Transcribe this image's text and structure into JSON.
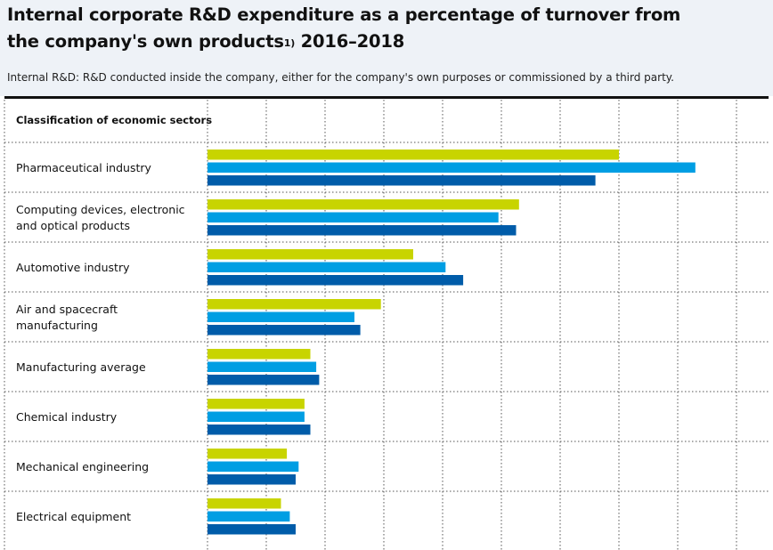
{
  "title_line1": "Internal corporate R&D expenditure as a percentage of turnover from",
  "title_line2": "the company's own products",
  "title_footnote": "1)",
  "title_years": "2016–2018",
  "subtitle": "Internal R&D: R&D conducted inside the company, either for the company's own purposes or commissioned by a third party.",
  "column_header": "Classification of economic sectors",
  "colors": {
    "2016": "#c8d400",
    "2017": "#009ee3",
    "2018": "#005ca9"
  },
  "chart_data": {
    "type": "bar",
    "orientation": "horizontal",
    "title": "Internal corporate R&D expenditure as a percentage of turnover from the company's own products 2016–2018",
    "xlim": [
      0,
      9
    ],
    "grid": true,
    "categories": [
      "Pharmaceutical industry",
      "Computing devices, electronic and optical products",
      "Automotive industry",
      "Air and spacecraft manufacturing",
      "Manufacturing average",
      "Chemical industry",
      "Mechanical engineering",
      "Electrical equipment"
    ],
    "series": [
      {
        "values": [
          7.0,
          5.3,
          3.5,
          2.95,
          1.75,
          1.65,
          1.35,
          1.25
        ]
      },
      {
        "values": [
          8.3,
          4.95,
          4.05,
          2.5,
          1.85,
          1.65,
          1.55,
          1.4
        ]
      },
      {
        "values": [
          6.6,
          5.25,
          4.35,
          2.6,
          1.9,
          1.75,
          1.5,
          1.5
        ]
      }
    ]
  }
}
